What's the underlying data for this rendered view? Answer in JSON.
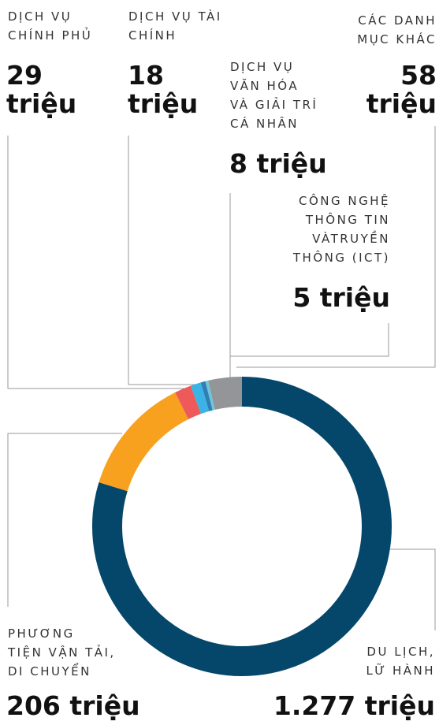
{
  "chart_data": {
    "type": "pie",
    "categories": [
      "DU LỊCH,\nLỮ HÀNH",
      "PHƯƠNG\nTIỆN VẬN TẢI,\nDI CHUYỂN",
      "DỊCH VỤ\nCHÍNH PHỦ",
      "DỊCH VỤ TÀI\nCHÍNH",
      "DỊCH VỤ\nVĂN HÓA\nVÀ GIẢI TRÍ\nCÁ NHÂN",
      "CÔNG NGHỆ\nTHÔNG TIN\nVÀTRUYỀN\nTHÔNG (ICT)",
      "CÁC DANH\nMỤC KHÁC"
    ],
    "values": [
      1277,
      206,
      29,
      18,
      8,
      5,
      58
    ],
    "value_labels": [
      "1.277 triệu",
      "206 triệu",
      "29 triệu",
      "18 triệu",
      "8 triệu",
      "5 triệu",
      "58 triệu"
    ],
    "colors": [
      "#05476a",
      "#f7a11f",
      "#ee5a5a",
      "#3ab4e6",
      "#2f7fb5",
      "#6fc6d8",
      "#939598"
    ]
  }
}
